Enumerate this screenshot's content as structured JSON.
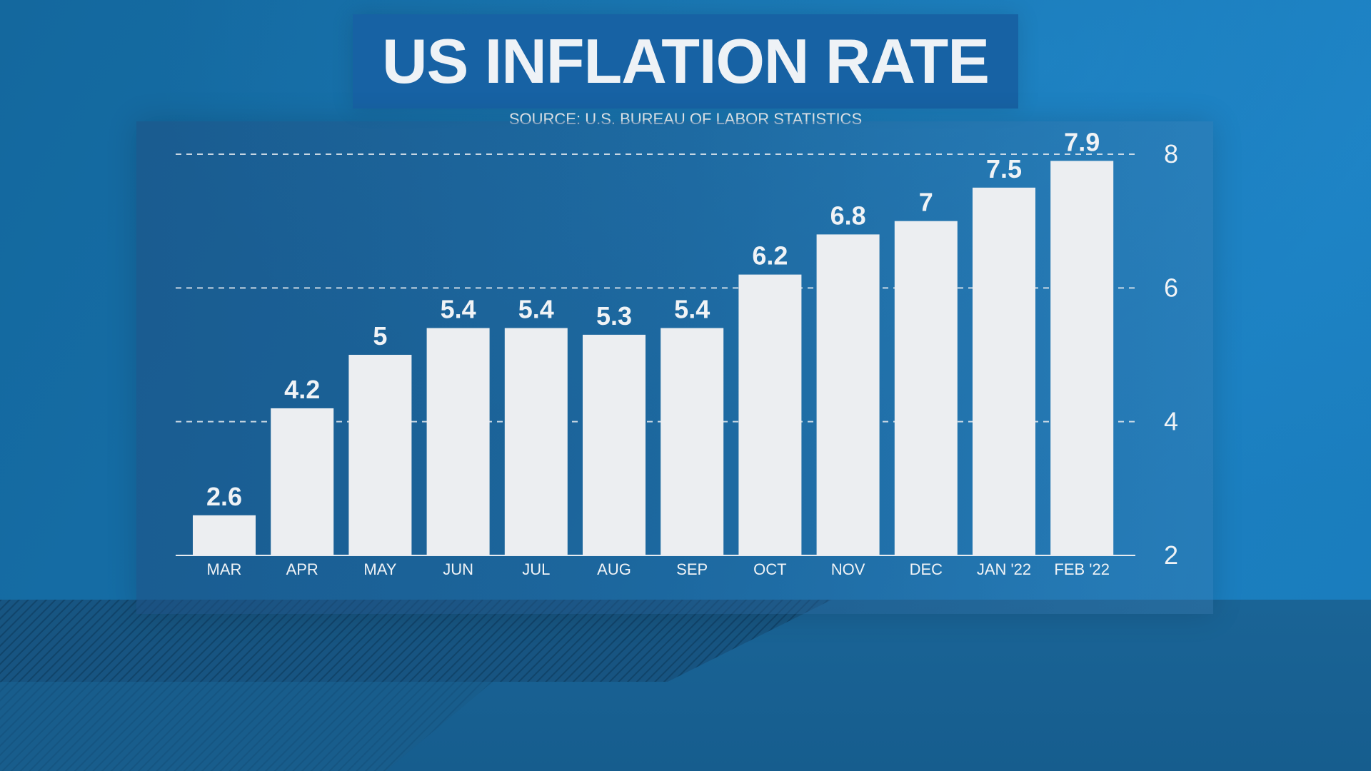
{
  "header": {
    "title": "US INFLATION RATE",
    "source": "SOURCE: U.S. BUREAU OF LABOR STATISTICS"
  },
  "colors": {
    "bar": "#eceef1",
    "text": "#f0f3f6",
    "grid": "#e6ebf0"
  },
  "chart_data": {
    "type": "bar",
    "title": "US INFLATION RATE",
    "subtitle": "SOURCE: U.S. BUREAU OF LABOR STATISTICS",
    "categories": [
      "MAR",
      "APR",
      "MAY",
      "JUN",
      "JUL",
      "AUG",
      "SEP",
      "OCT",
      "NOV",
      "DEC",
      "JAN '22",
      "FEB '22"
    ],
    "values": [
      2.6,
      4.2,
      5,
      5.4,
      5.4,
      5.3,
      5.4,
      6.2,
      6.8,
      7,
      7.5,
      7.9
    ],
    "value_labels": [
      "2.6",
      "4.2",
      "5",
      "5.4",
      "5.4",
      "5.3",
      "5.4",
      "6.2",
      "6.8",
      "7",
      "7.5",
      "7.9"
    ],
    "ylim": [
      2,
      8
    ],
    "yticks": [
      2,
      4,
      6,
      8
    ],
    "ytick_labels": [
      "2",
      "4",
      "6",
      "8"
    ],
    "y_axis_side": "right",
    "grid": true,
    "xlabel": "",
    "ylabel": ""
  }
}
